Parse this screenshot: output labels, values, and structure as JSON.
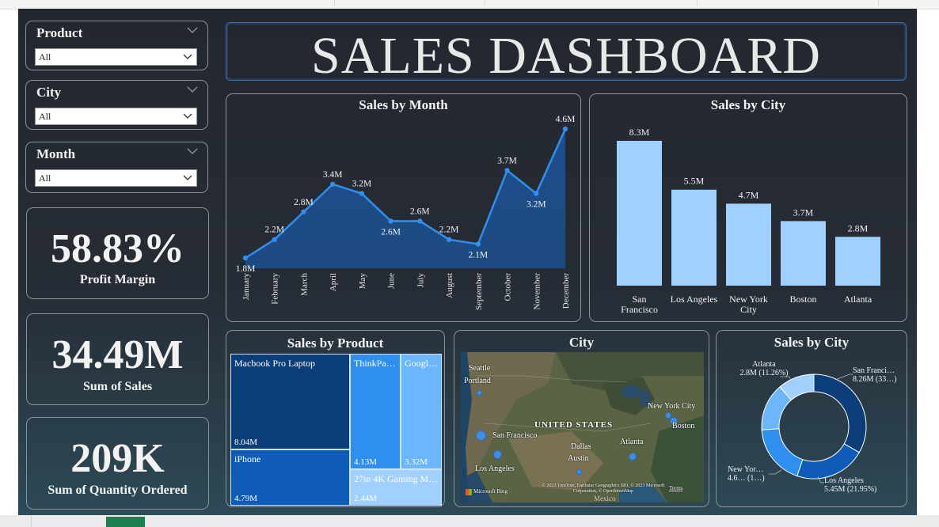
{
  "dashboard_title": "SALES DASHBOARD",
  "slicers": [
    {
      "title": "Product",
      "value": "All"
    },
    {
      "title": "City",
      "value": "All"
    },
    {
      "title": "Month",
      "value": "All"
    }
  ],
  "kpis": [
    {
      "value": "58.83%",
      "label": "Profit Margin"
    },
    {
      "value": "34.49M",
      "label": "Sum of Sales"
    },
    {
      "value": "209K",
      "label": "Sum of Quantity Ordered"
    }
  ],
  "colors": {
    "area_fill": "#1f4e86",
    "line": "#2f8ff0",
    "bar": "#9fd0ff",
    "panel_bg": "#262c35"
  },
  "chart_data": [
    {
      "type": "area",
      "title": "Sales by Month",
      "categories": [
        "January",
        "February",
        "March",
        "April",
        "May",
        "June",
        "July",
        "August",
        "September",
        "October",
        "November",
        "December"
      ],
      "values": [
        1.8,
        2.2,
        2.8,
        3.4,
        3.2,
        2.6,
        2.6,
        2.2,
        2.1,
        3.7,
        3.2,
        4.6
      ],
      "data_labels": [
        "1.8M",
        "2.2M",
        "2.8M",
        "3.4M",
        "3.2M",
        "2.6M",
        "2.6M",
        "2.2M",
        "2.1M",
        "3.7M",
        "3.2M",
        "4.6M"
      ],
      "unit": "M"
    },
    {
      "type": "bar",
      "title": "Sales by City",
      "categories": [
        "San Francisco",
        "Los Angeles",
        "New York City",
        "Boston",
        "Atlanta"
      ],
      "values": [
        8.3,
        5.5,
        4.7,
        3.7,
        2.8
      ],
      "data_labels": [
        "8.3M",
        "5.5M",
        "4.7M",
        "3.7M",
        "2.8M"
      ],
      "unit": "M"
    },
    {
      "type": "treemap",
      "title": "Sales by Product",
      "items": [
        {
          "name": "Macbook Pro Laptop",
          "label": "8.04M",
          "value": 8.04
        },
        {
          "name": "iPhone",
          "label": "4.79M",
          "value": 4.79
        },
        {
          "name": "ThinkPa…",
          "label": "4.13M",
          "value": 4.13
        },
        {
          "name": "Googl…",
          "label": "3.32M",
          "value": 3.32
        },
        {
          "name": "27in 4K Gaming M…",
          "label": "2.44M",
          "value": 2.44
        }
      ]
    },
    {
      "type": "pie",
      "title": "Sales by City",
      "slices": [
        {
          "name": "San Franci…",
          "label": "8.26M (33…)",
          "value": 8.26
        },
        {
          "name": "Los Angeles",
          "label": "5.45M (21.95%)",
          "value": 5.45
        },
        {
          "name": "New Yor…",
          "label": "4.6… (1…)",
          "value": 4.66
        },
        {
          "name": "Boston",
          "label": "",
          "value": 3.66
        },
        {
          "name": "Atlanta",
          "label": "2.8M (11.26%)",
          "value": 2.8
        }
      ]
    }
  ],
  "map": {
    "title": "City",
    "country_label": "UNITED STATES",
    "country_sub": "Mexico",
    "cities": [
      "Seattle",
      "Portland",
      "San Francisco",
      "Los Angeles",
      "Dallas",
      "Austin",
      "Atlanta",
      "New York City",
      "Boston"
    ],
    "attribution": "© 2023 TomTom, Earthstar Geographics SIO, © 2023 Microsoft Corporation, © OpenStreetMap",
    "terms": "Terms",
    "bing": "Microsoft Bing"
  }
}
